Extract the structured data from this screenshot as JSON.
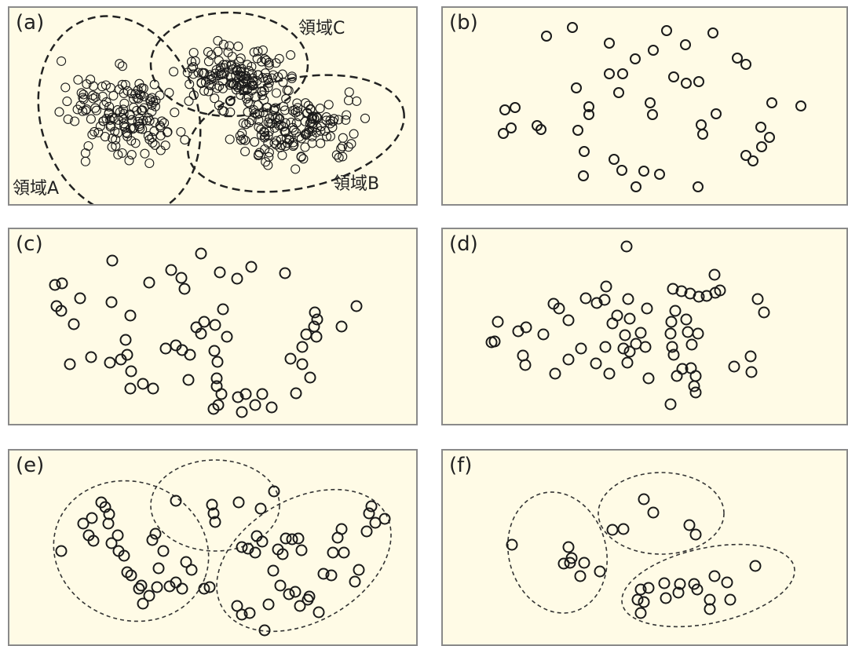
{
  "panels": {
    "a": {
      "label": "(a)",
      "regions": {
        "a": "領域A",
        "b": "領域B",
        "c": "領域C"
      }
    },
    "b": {
      "label": "(b)"
    },
    "c": {
      "label": "(c)"
    },
    "d": {
      "label": "(d)"
    },
    "e": {
      "label": "(e)"
    },
    "f": {
      "label": "(f)"
    }
  }
}
